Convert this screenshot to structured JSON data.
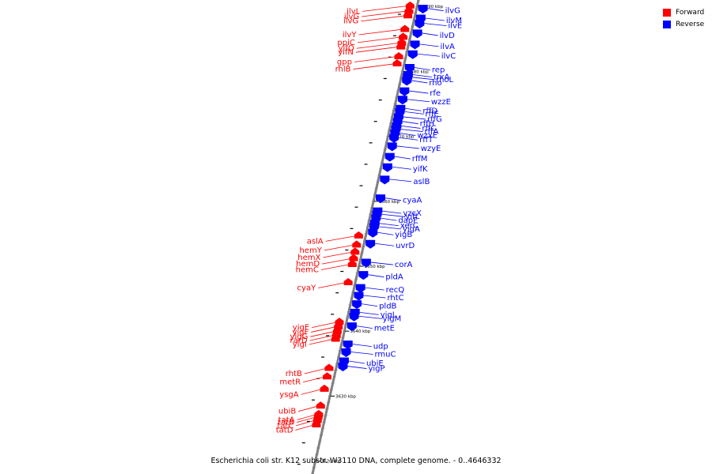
{
  "legend": {
    "items": [
      {
        "label": "Forward",
        "color": "#ff0000"
      },
      {
        "label": "Reverse",
        "color": "#0000ff"
      }
    ]
  },
  "footer": {
    "caption": "Escherichia coli str. K12 substr. W3110 DNA, complete genome. - 0..4646332"
  },
  "colors": {
    "forward": "#ff0000",
    "reverse": "#0000ff",
    "axis": "#808080"
  },
  "scale": {
    "start_kbp": 3618,
    "end_kbp": 3691,
    "tick_labels": [
      {
        "kbp": 3690,
        "label": "3690 kbp"
      },
      {
        "kbp": 3680,
        "label": "3680 kbp"
      },
      {
        "kbp": 3670,
        "label": "3670 kbp"
      },
      {
        "kbp": 3660,
        "label": "3660 kbp"
      },
      {
        "kbp": 3650,
        "label": "3650 kbp"
      },
      {
        "kbp": 3640,
        "label": "3640 kbp"
      },
      {
        "kbp": 3630,
        "label": "3630 kbp"
      },
      {
        "kbp": 3620,
        "label": "3620 kbp"
      }
    ]
  },
  "forward_genes": [
    {
      "name": "ilvL",
      "kbp": 3690.1
    },
    {
      "name": "ilvG",
      "kbp": 3689.3
    },
    {
      "name": "ilvG",
      "kbp": 3688.6
    },
    {
      "name": "ilvY",
      "kbp": 3686.5
    },
    {
      "name": "ppiC",
      "kbp": 3685.3
    },
    {
      "name": "yifO",
      "kbp": 3684.4
    },
    {
      "name": "yifN",
      "kbp": 3683.8
    },
    {
      "name": "gpp",
      "kbp": 3682.3
    },
    {
      "name": "rhlB",
      "kbp": 3681.2
    },
    {
      "name": "aslA",
      "kbp": 3654.7
    },
    {
      "name": "hemY",
      "kbp": 3653.3
    },
    {
      "name": "hemX",
      "kbp": 3652.2
    },
    {
      "name": "hemD",
      "kbp": 3651.2
    },
    {
      "name": "hemC",
      "kbp": 3650.3
    },
    {
      "name": "cyaY",
      "kbp": 3647.5
    },
    {
      "name": "yigE",
      "kbp": 3641.4
    },
    {
      "name": "yigF",
      "kbp": 3640.7
    },
    {
      "name": "yigG",
      "kbp": 3640.0
    },
    {
      "name": "rarD",
      "kbp": 3639.4
    },
    {
      "name": "yigI",
      "kbp": 3638.8
    },
    {
      "name": "rhtB",
      "kbp": 3634.3
    },
    {
      "name": "metR",
      "kbp": 3633.0
    },
    {
      "name": "ysgA",
      "kbp": 3631.1
    },
    {
      "name": "ubiB",
      "kbp": 3628.5
    },
    {
      "name": "tatA",
      "kbp": 3627.2
    },
    {
      "name": "tatB",
      "kbp": 3626.8
    },
    {
      "name": "tatC",
      "kbp": 3626.3
    },
    {
      "name": "tatD",
      "kbp": 3625.6
    }
  ],
  "reverse_genes": [
    {
      "name": "ilvG",
      "kbp": 3689.7
    },
    {
      "name": "ilvM",
      "kbp": 3688.2
    },
    {
      "name": "ilvE",
      "kbp": 3687.4
    },
    {
      "name": "ilvD",
      "kbp": 3685.9
    },
    {
      "name": "ilvA",
      "kbp": 3684.2
    },
    {
      "name": "ilvC",
      "kbp": 3682.7
    },
    {
      "name": "rep",
      "kbp": 3680.6
    },
    {
      "name": "trxA",
      "kbp": 3679.5
    },
    {
      "name": "rhoL",
      "kbp": 3679.1
    },
    {
      "name": "rho",
      "kbp": 3678.6
    },
    {
      "name": "rfe",
      "kbp": 3677.0
    },
    {
      "name": "wzzE",
      "kbp": 3675.7
    },
    {
      "name": "rffD",
      "kbp": 3674.3
    },
    {
      "name": "rffE",
      "kbp": 3673.8
    },
    {
      "name": "rffG",
      "kbp": 3673.0
    },
    {
      "name": "rffH",
      "kbp": 3672.3
    },
    {
      "name": "rffC",
      "kbp": 3671.6
    },
    {
      "name": "rffA",
      "kbp": 3671.1
    },
    {
      "name": "wzxE",
      "kbp": 3670.5
    },
    {
      "name": "rffT",
      "kbp": 3669.8
    },
    {
      "name": "wzyE",
      "kbp": 3668.5
    },
    {
      "name": "rffM",
      "kbp": 3666.9
    },
    {
      "name": "yifK",
      "kbp": 3665.3
    },
    {
      "name": "aslB",
      "kbp": 3663.4
    },
    {
      "name": "cyaA",
      "kbp": 3660.5
    },
    {
      "name": "yzcX",
      "kbp": 3658.5
    },
    {
      "name": "yifL",
      "kbp": 3658.0
    },
    {
      "name": "dapF",
      "kbp": 3657.4
    },
    {
      "name": "xerC",
      "kbp": 3656.6
    },
    {
      "name": "yigA",
      "kbp": 3656.1
    },
    {
      "name": "yigB",
      "kbp": 3655.2
    },
    {
      "name": "uvrD",
      "kbp": 3653.5
    },
    {
      "name": "corA",
      "kbp": 3650.6
    },
    {
      "name": "pldA",
      "kbp": 3648.7
    },
    {
      "name": "recQ",
      "kbp": 3646.7
    },
    {
      "name": "rhtC",
      "kbp": 3645.5
    },
    {
      "name": "pldB",
      "kbp": 3644.2
    },
    {
      "name": "yigL",
      "kbp": 3642.9
    },
    {
      "name": "yigM",
      "kbp": 3642.3
    },
    {
      "name": "metE",
      "kbp": 3640.8
    },
    {
      "name": "udp",
      "kbp": 3638.0
    },
    {
      "name": "rmuC",
      "kbp": 3636.8
    },
    {
      "name": "ubiE",
      "kbp": 3635.4
    },
    {
      "name": "yigP",
      "kbp": 3634.6
    }
  ]
}
